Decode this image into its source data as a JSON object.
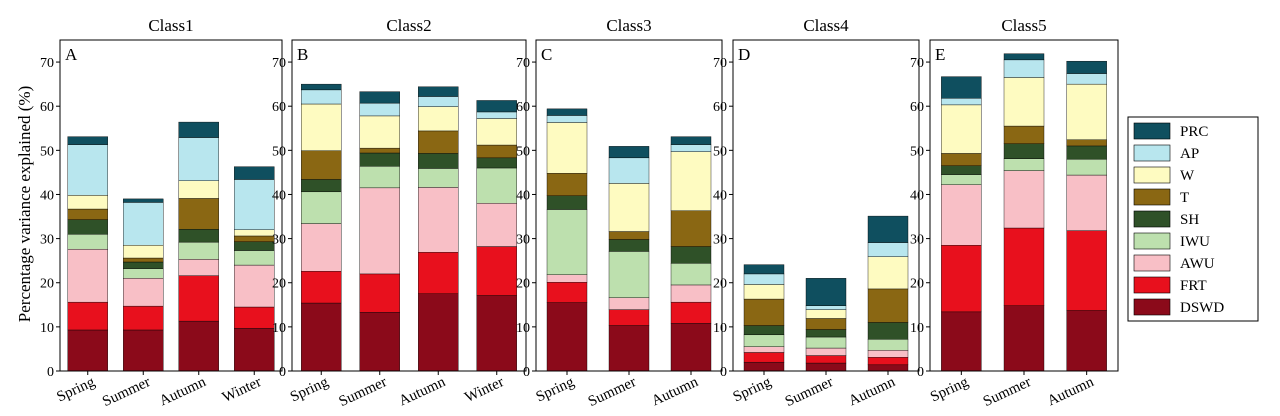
{
  "ylabel": "Percentage variance explained (%)",
  "legend_position": "right",
  "components": [
    {
      "name": "DSWD",
      "color": "#8b0a1a"
    },
    {
      "name": "FRT",
      "color": "#e8101d"
    },
    {
      "name": "AWU",
      "color": "#f8bfc6"
    },
    {
      "name": "IWU",
      "color": "#bde0ae"
    },
    {
      "name": "SH",
      "color": "#2f5128"
    },
    {
      "name": "T",
      "color": "#8a6713"
    },
    {
      "name": "W",
      "color": "#fefbc1"
    },
    {
      "name": "AP",
      "color": "#b8e6ee"
    },
    {
      "name": "PRC",
      "color": "#0f4f5f"
    }
  ],
  "legend_order": [
    "PRC",
    "AP",
    "W",
    "T",
    "SH",
    "IWU",
    "AWU",
    "FRT",
    "DSWD"
  ],
  "chart_data": [
    {
      "type": "bar",
      "stacked": true,
      "title": "Class1",
      "panel": "A",
      "ylim": [
        0,
        75
      ],
      "yticks": [
        0,
        10,
        20,
        30,
        40,
        50,
        60,
        70
      ],
      "categories": [
        "Spring",
        "Summer",
        "Autumn",
        "Winter"
      ],
      "series": [
        {
          "name": "DSWD",
          "values": [
            9.3,
            9.3,
            11.3,
            9.7
          ]
        },
        {
          "name": "FRT",
          "values": [
            6.3,
            5.4,
            10.3,
            4.8
          ]
        },
        {
          "name": "AWU",
          "values": [
            12.0,
            6.3,
            3.7,
            9.5
          ]
        },
        {
          "name": "IWU",
          "values": [
            3.4,
            2.2,
            3.9,
            3.3
          ]
        },
        {
          "name": "SH",
          "values": [
            3.3,
            1.5,
            2.9,
            2.0
          ]
        },
        {
          "name": "T",
          "values": [
            2.4,
            0.9,
            7.0,
            1.3
          ]
        },
        {
          "name": "W",
          "values": [
            3.1,
            2.9,
            4.0,
            1.4
          ]
        },
        {
          "name": "AP",
          "values": [
            11.5,
            9.7,
            9.8,
            11.4
          ]
        },
        {
          "name": "PRC",
          "values": [
            1.8,
            0.8,
            3.5,
            2.9
          ]
        }
      ]
    },
    {
      "type": "bar",
      "stacked": true,
      "title": "Class2",
      "panel": "B",
      "ylim": [
        0,
        75
      ],
      "yticks": [
        0,
        10,
        20,
        30,
        40,
        50,
        60,
        70
      ],
      "categories": [
        "Spring",
        "Summer",
        "Autumn",
        "Winter"
      ],
      "series": [
        {
          "name": "DSWD",
          "values": [
            15.4,
            13.3,
            17.5,
            17.1
          ]
        },
        {
          "name": "FRT",
          "values": [
            7.2,
            8.7,
            9.4,
            11.1
          ]
        },
        {
          "name": "AWU",
          "values": [
            10.8,
            19.5,
            14.7,
            9.8
          ]
        },
        {
          "name": "IWU",
          "values": [
            7.2,
            4.9,
            4.3,
            8.0
          ]
        },
        {
          "name": "SH",
          "values": [
            2.8,
            3.0,
            3.4,
            2.3
          ]
        },
        {
          "name": "T",
          "values": [
            6.5,
            1.1,
            5.1,
            2.9
          ]
        },
        {
          "name": "W",
          "values": [
            10.6,
            7.3,
            5.5,
            6.0
          ]
        },
        {
          "name": "AP",
          "values": [
            3.2,
            2.9,
            2.3,
            1.5
          ]
        },
        {
          "name": "PRC",
          "values": [
            1.3,
            2.6,
            2.2,
            2.6
          ]
        }
      ]
    },
    {
      "type": "bar",
      "stacked": true,
      "title": "Class3",
      "panel": "C",
      "ylim": [
        0,
        75
      ],
      "yticks": [
        0,
        10,
        20,
        30,
        40,
        50,
        60,
        70
      ],
      "categories": [
        "Spring",
        "Summer",
        "Autumn"
      ],
      "series": [
        {
          "name": "DSWD",
          "values": [
            15.5,
            10.3,
            10.8
          ]
        },
        {
          "name": "FRT",
          "values": [
            4.6,
            3.6,
            4.8
          ]
        },
        {
          "name": "AWU",
          "values": [
            1.7,
            2.7,
            3.9
          ]
        },
        {
          "name": "IWU",
          "values": [
            14.8,
            10.5,
            4.9
          ]
        },
        {
          "name": "SH",
          "values": [
            3.1,
            2.7,
            3.8
          ]
        },
        {
          "name": "T",
          "values": [
            5.1,
            1.8,
            8.1
          ]
        },
        {
          "name": "W",
          "values": [
            11.5,
            10.9,
            13.4
          ]
        },
        {
          "name": "AP",
          "values": [
            1.6,
            5.8,
            1.6
          ]
        },
        {
          "name": "PRC",
          "values": [
            1.5,
            2.6,
            1.8
          ]
        }
      ]
    },
    {
      "type": "bar",
      "stacked": true,
      "title": "Class4",
      "panel": "D",
      "ylim": [
        0,
        75
      ],
      "yticks": [
        0,
        10,
        20,
        30,
        40,
        50,
        60,
        70
      ],
      "categories": [
        "Spring",
        "Summer",
        "Autumn"
      ],
      "series": [
        {
          "name": "DSWD",
          "values": [
            2.0,
            1.8,
            1.4
          ]
        },
        {
          "name": "FRT",
          "values": [
            2.2,
            1.7,
            1.7
          ]
        },
        {
          "name": "AWU",
          "values": [
            1.3,
            1.7,
            1.6
          ]
        },
        {
          "name": "IWU",
          "values": [
            2.7,
            2.5,
            2.5
          ]
        },
        {
          "name": "SH",
          "values": [
            2.1,
            1.7,
            3.8
          ]
        },
        {
          "name": "T",
          "values": [
            6.0,
            2.5,
            7.6
          ]
        },
        {
          "name": "W",
          "values": [
            3.3,
            2.0,
            7.3
          ]
        },
        {
          "name": "AP",
          "values": [
            2.4,
            0.9,
            3.2
          ]
        },
        {
          "name": "PRC",
          "values": [
            2.1,
            6.2,
            6.0
          ]
        }
      ]
    },
    {
      "type": "bar",
      "stacked": true,
      "title": "Class5",
      "panel": "E",
      "ylim": [
        0,
        75
      ],
      "yticks": [
        0,
        10,
        20,
        30,
        40,
        50,
        60,
        70
      ],
      "categories": [
        "Spring",
        "Summer",
        "Autumn"
      ],
      "series": [
        {
          "name": "DSWD",
          "values": [
            13.4,
            14.8,
            13.7
          ]
        },
        {
          "name": "FRT",
          "values": [
            15.1,
            17.6,
            18.1
          ]
        },
        {
          "name": "AWU",
          "values": [
            13.7,
            13.0,
            12.6
          ]
        },
        {
          "name": "IWU",
          "values": [
            2.3,
            2.7,
            3.6
          ]
        },
        {
          "name": "SH",
          "values": [
            2.0,
            3.4,
            3.0
          ]
        },
        {
          "name": "T",
          "values": [
            2.8,
            4.0,
            1.4
          ]
        },
        {
          "name": "W",
          "values": [
            11.0,
            11.0,
            12.6
          ]
        },
        {
          "name": "AP",
          "values": [
            1.5,
            4.0,
            2.4
          ]
        },
        {
          "name": "PRC",
          "values": [
            4.9,
            1.4,
            2.8
          ]
        }
      ]
    }
  ]
}
